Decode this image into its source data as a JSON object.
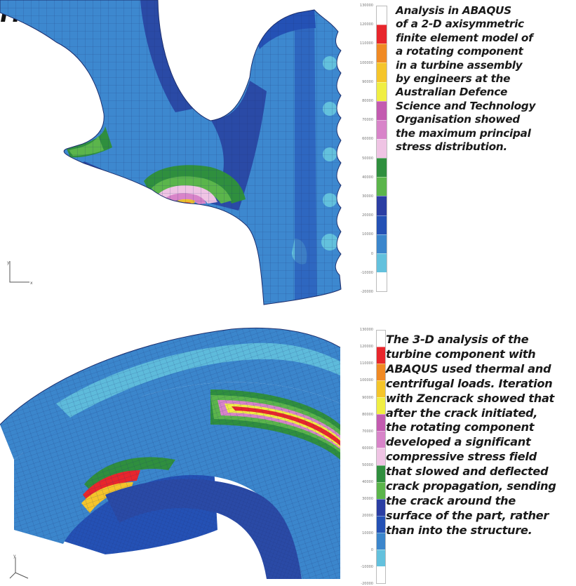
{
  "headline": "rn under",
  "figures": [
    {
      "legend": {
        "colors": [
          "#ffffff",
          "#e8262c",
          "#f08a24",
          "#f5c52a",
          "#f0ee43",
          "#c35bb0",
          "#d884c9",
          "#efc4e4",
          "#2f8f3e",
          "#5bb54b",
          "#2b3ea3",
          "#2451b5",
          "#3b86cc",
          "#63c1dd",
          "#ffffff"
        ],
        "ticks": [
          "130000",
          "120000",
          "110000",
          "100000",
          "90000",
          "80000",
          "70000",
          "60000",
          "50000",
          "40000",
          "30000",
          "20000",
          "10000",
          "0",
          "-10000",
          "-20000"
        ]
      },
      "caption": [
        "Analysis in ABAQUS",
        "of a 2-D axisymmetric",
        "finite element model of",
        "a rotating component",
        "in a turbine assembly",
        "by engineers at the",
        "Australian Defence",
        "Science and Technology",
        "Organisation showed",
        "the maximum principal",
        "stress distribution."
      ]
    },
    {
      "legend": {
        "colors": [
          "#ffffff",
          "#e8262c",
          "#f08a24",
          "#f5c52a",
          "#f0ee43",
          "#c35bb0",
          "#d884c9",
          "#efc4e4",
          "#2f8f3e",
          "#5bb54b",
          "#2b3ea3",
          "#2451b5",
          "#3b86cc",
          "#63c1dd",
          "#ffffff"
        ],
        "ticks": [
          "130000",
          "120000",
          "110000",
          "100000",
          "90000",
          "80000",
          "70000",
          "60000",
          "50000",
          "40000",
          "30000",
          "20000",
          "10000",
          "0",
          "-10000",
          "-20000"
        ]
      },
      "caption": [
        "The 3-D analysis of the",
        "turbine component with",
        "ABAQUS used thermal and",
        "centrifugal loads. Iteration",
        "with Zencrack showed that",
        "after the crack initiated,",
        "the rotating component",
        "developed a significant",
        "compressive stress field",
        "that slowed and deflected",
        "crack propagation, sending",
        "the crack around the",
        "surface of the part, rather",
        "than into the structure."
      ]
    }
  ]
}
